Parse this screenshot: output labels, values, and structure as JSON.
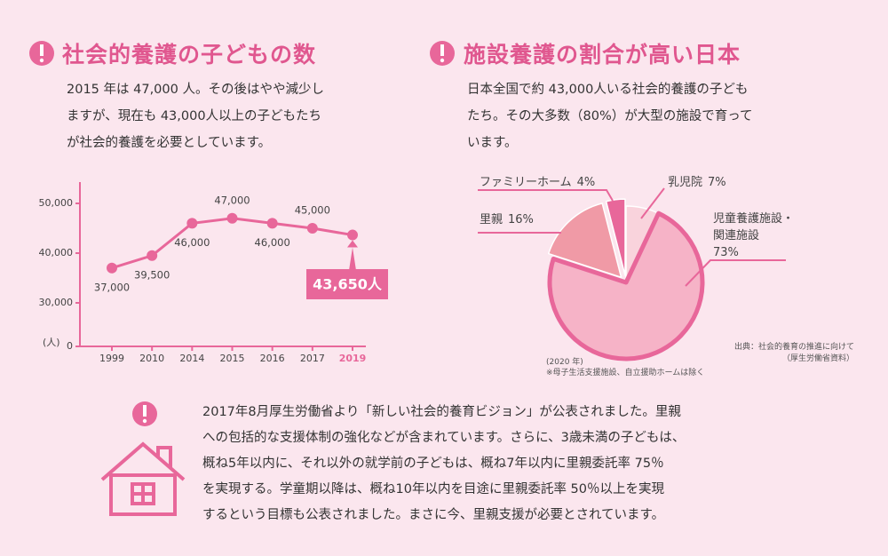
{
  "left_section": {
    "title": "社会的養護の子どもの数",
    "body": "2015 年は 47,000 人。その後はやや減少し\nますが、現在も 43,000人以上の子どもたち\nが社会的養護を必要としています。"
  },
  "right_section": {
    "title": "施設養護の割合が高い日本",
    "body": "日本全国で約 43,000人いる社会的養護の子ども\nたち。その大多数（80%）が大型の施設で育って\nいます。"
  },
  "chart_data": [
    {
      "type": "line",
      "ylabel": "(人)",
      "categories": [
        "1999",
        "2010",
        "2014",
        "2015",
        "2016",
        "2017",
        "2019"
      ],
      "values": [
        37000,
        39500,
        46000,
        47000,
        46000,
        45000,
        43650
      ],
      "value_labels": [
        "37,000",
        "39,500",
        "46,000",
        "47,000",
        "46,000",
        "45,000",
        "43,650人"
      ],
      "color": "#e8679a",
      "ylim": [
        0,
        54000
      ],
      "yticks": [
        0,
        {
          "value": 30000,
          "label": "30,000"
        },
        {
          "value": 40000,
          "label": "40,000"
        },
        {
          "value": 50000,
          "label": "50,000"
        }
      ]
    },
    {
      "type": "pie",
      "categories": [
        "乳児院",
        "児童養護施設・\n関連施設",
        "里親",
        "ファミリーホーム"
      ],
      "values": [
        7,
        73,
        16,
        4
      ],
      "value_labels": [
        "7%",
        "73%",
        "16%",
        "4%"
      ],
      "colors": [
        "#f9d3dc",
        "#f6b3c7",
        "#f09aa6",
        "#e8679a"
      ],
      "year": "(2020 年)",
      "footnote": "※母子生活支援施設、自立援助ホームは除く",
      "source": "出典：社会的養育の推進に向けて\n（厚生労働省資料）"
    }
  ],
  "notice": {
    "body": "2017年8月厚生労働省より「新しい社会的養育ビジョン」が公表されました。里親\nへの包括的な支援体制の強化などが含まれています。さらに、3歳未満の子どもは、\n概ね5年以内に、それ以外の就学前の子どもは、概ね7年以内に里親委託率 75％\nを実現する。学童期以降は、概ね10年以内を目途に里親委託率 50％以上を実現\nするという目標も公表されました。まさに今、里親支援が必要とされています。"
  }
}
